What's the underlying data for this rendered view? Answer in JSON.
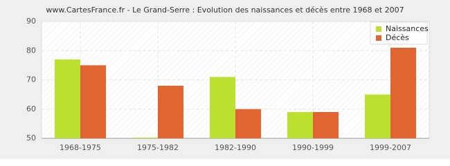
{
  "chart_data": {
    "type": "bar",
    "title": "www.CartesFrance.fr - Le Grand-Serre : Evolution des naissances et décès entre 1968 et 2007",
    "categories": [
      "1968-1975",
      "1975-1982",
      "1982-1990",
      "1990-1999",
      "1999-2007"
    ],
    "series": [
      {
        "name": "Naissances",
        "color": "#bbe030",
        "values": [
          77,
          50,
          71,
          59,
          65
        ]
      },
      {
        "name": "Décès",
        "color": "#e06430",
        "values": [
          75,
          68,
          60,
          59,
          81
        ]
      }
    ],
    "ylim": [
      50,
      90
    ],
    "yticks": [
      50,
      60,
      70,
      80,
      90
    ],
    "grid": true,
    "legend": "top-right"
  }
}
